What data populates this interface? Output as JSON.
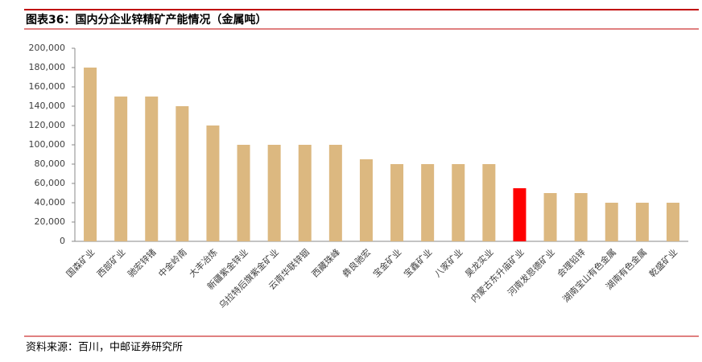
{
  "chart_data": {
    "type": "bar",
    "title": "图表36：国内分企业锌精矿产能情况（金属吨）",
    "source": "资料来源：百川，中邮证券研究所",
    "categories": [
      "国森矿业",
      "西部矿业",
      "驰宏锌锗",
      "中金岭南",
      "大丰冶炼",
      "新疆紫金锌业",
      "乌拉特后旗紫金矿业",
      "云南华联锌铟",
      "西藏珠峰",
      "彝良驰宏",
      "宝金矿业",
      "宝鑫矿业",
      "八家矿业",
      "昊龙实业",
      "内蒙古东升庙矿业",
      "河南发恩德矿业",
      "会理铅锌",
      "湖南宝山有色金属",
      "湖南有色金属",
      "乾盛矿业"
    ],
    "values": [
      180000,
      150000,
      150000,
      140000,
      120000,
      100000,
      100000,
      100000,
      100000,
      85000,
      80000,
      80000,
      80000,
      80000,
      55000,
      50000,
      50000,
      40000,
      40000,
      40000
    ],
    "colors": [
      "#dcb880",
      "#dcb880",
      "#dcb880",
      "#dcb880",
      "#dcb880",
      "#dcb880",
      "#dcb880",
      "#dcb880",
      "#dcb880",
      "#dcb880",
      "#dcb880",
      "#dcb880",
      "#dcb880",
      "#dcb880",
      "#ff0000",
      "#dcb880",
      "#dcb880",
      "#dcb880",
      "#dcb880",
      "#dcb880"
    ],
    "ylim": [
      0,
      200000
    ],
    "yticks": [
      0,
      {
        "value": 20000,
        "label": "20,000"
      },
      {
        "value": 40000,
        "label": "40,000"
      },
      {
        "value": 60000,
        "label": "60,000"
      },
      {
        "value": 80000,
        "label": "80,000"
      },
      {
        "value": 100000,
        "label": "100,000"
      },
      {
        "value": 120000,
        "label": "120,000"
      },
      {
        "value": 140000,
        "label": "140,000"
      },
      {
        "value": 160000,
        "label": "160,000"
      },
      {
        "value": 180000,
        "label": "180,000"
      },
      {
        "value": 200000,
        "label": "200,000"
      }
    ],
    "grid": false
  }
}
